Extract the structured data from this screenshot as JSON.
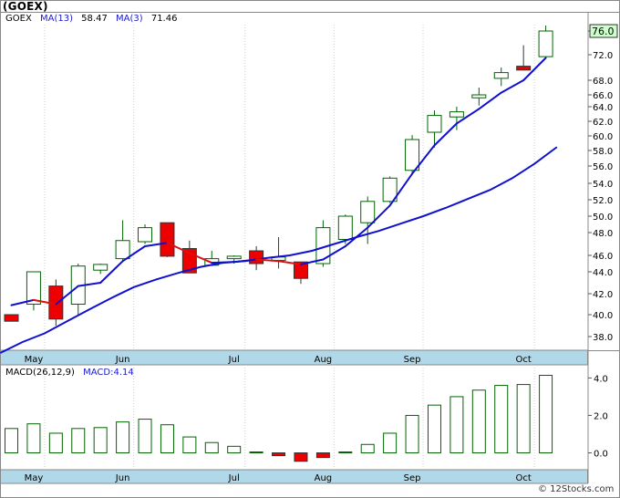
{
  "title": "(GOEX)",
  "legend": {
    "symbol": "GOEX",
    "ma13_label": "MA(13)",
    "ma13_value": "58.47",
    "ma3_label": "MA(3)",
    "ma3_value": "71.46"
  },
  "macd_legend": {
    "label": "MACD(26,12,9)",
    "value_label": "MACD:4.14"
  },
  "copyright": "© 12Stocks.com",
  "last_price_label": "76.0",
  "colors": {
    "up_fill": "#ffffff",
    "up_stroke": "#006400",
    "down_fill": "#ee0000",
    "ma_line": "#1010d0",
    "ma_down": "#dd1010",
    "axis_band": "#b0d8e8",
    "price_badge": "#ccffcc"
  },
  "chart_data": [
    {
      "type": "candlestick",
      "period": "weekly",
      "ylim": [
        36.5,
        77.5
      ],
      "y_ticks": [
        38.0,
        40.0,
        42.0,
        44.0,
        46.0,
        48.0,
        50.0,
        52.0,
        54.0,
        56.0,
        58.0,
        60.0,
        62.0,
        64.0,
        66.0,
        68.0,
        72.0,
        76.0
      ],
      "x_month_labels": [
        {
          "label": "May",
          "index": 1
        },
        {
          "label": "Jun",
          "index": 5
        },
        {
          "label": "Jul",
          "index": 10
        },
        {
          "label": "Aug",
          "index": 14
        },
        {
          "label": "Sep",
          "index": 18
        },
        {
          "label": "Oct",
          "index": 23
        }
      ],
      "candles": [
        {
          "o": 40.0,
          "h": 40.0,
          "l": 39.4,
          "c": 39.4
        },
        {
          "o": 41.0,
          "h": 44.0,
          "l": 40.4,
          "c": 44.0
        },
        {
          "o": 42.7,
          "h": 43.3,
          "l": 39.0,
          "c": 39.6
        },
        {
          "o": 41.0,
          "h": 45.0,
          "l": 40.0,
          "c": 44.7
        },
        {
          "o": 44.2,
          "h": 45.0,
          "l": 43.8,
          "c": 44.9
        },
        {
          "o": 45.6,
          "h": 49.5,
          "l": 45.4,
          "c": 47.3
        },
        {
          "o": 47.2,
          "h": 49.0,
          "l": 47.0,
          "c": 48.6
        },
        {
          "o": 49.2,
          "h": 49.2,
          "l": 45.8,
          "c": 45.9
        },
        {
          "o": 46.6,
          "h": 47.3,
          "l": 43.9,
          "c": 43.9
        },
        {
          "o": 44.8,
          "h": 46.4,
          "l": 44.7,
          "c": 45.6
        },
        {
          "o": 45.6,
          "h": 46.0,
          "l": 45.0,
          "c": 45.9
        },
        {
          "o": 46.4,
          "h": 46.8,
          "l": 44.2,
          "c": 45.0
        },
        {
          "o": 45.4,
          "h": 47.6,
          "l": 44.4,
          "c": 45.8
        },
        {
          "o": 45.2,
          "h": 45.2,
          "l": 42.9,
          "c": 43.4
        },
        {
          "o": 45.0,
          "h": 49.5,
          "l": 44.6,
          "c": 48.6
        },
        {
          "o": 47.4,
          "h": 50.2,
          "l": 47.0,
          "c": 50.0
        },
        {
          "o": 49.2,
          "h": 52.4,
          "l": 47.0,
          "c": 51.8
        },
        {
          "o": 51.8,
          "h": 54.8,
          "l": 51.6,
          "c": 54.6
        },
        {
          "o": 55.5,
          "h": 60.1,
          "l": 55.0,
          "c": 59.5
        },
        {
          "o": 60.5,
          "h": 63.5,
          "l": 58.4,
          "c": 62.8
        },
        {
          "o": 62.6,
          "h": 64.0,
          "l": 60.8,
          "c": 63.3
        },
        {
          "o": 65.5,
          "h": 67.0,
          "l": 64.2,
          "c": 66.0
        },
        {
          "o": 68.3,
          "h": 70.0,
          "l": 67.2,
          "c": 69.2
        },
        {
          "o": 70.2,
          "h": 73.6,
          "l": 69.6,
          "c": 69.6
        },
        {
          "o": 71.7,
          "h": 77.0,
          "l": 71.4,
          "c": 76.0
        }
      ],
      "ma3": [
        40.9,
        41.4,
        41.0,
        42.7,
        43.0,
        45.3,
        46.8,
        47.1,
        46.2,
        45.1,
        45.2,
        45.5,
        45.3,
        44.9,
        45.5,
        46.8,
        48.6,
        51.3,
        55.1,
        58.7,
        61.7,
        63.7,
        66.3,
        68.0,
        71.5
      ],
      "ma13": [
        36.8,
        37.6,
        38.3,
        39.4,
        40.5,
        41.6,
        42.6,
        43.3,
        43.9,
        44.6,
        45.1,
        45.3,
        45.7,
        46.0,
        46.4,
        47.0,
        47.6,
        48.2,
        49.1,
        50.0,
        51.0,
        52.1,
        53.2,
        54.6,
        56.3,
        58.47
      ],
      "ma13_start_index": -0.5
    },
    {
      "type": "bar",
      "title": "MACD(26,12,9)",
      "ylim": [
        -0.9,
        4.7
      ],
      "y_ticks": [
        0.0,
        2.0,
        4.0
      ],
      "x_month_labels": [
        {
          "label": "May",
          "index": 1
        },
        {
          "label": "Jun",
          "index": 5
        },
        {
          "label": "Jul",
          "index": 10
        },
        {
          "label": "Aug",
          "index": 14
        },
        {
          "label": "Sep",
          "index": 18
        },
        {
          "label": "Oct",
          "index": 23
        }
      ],
      "values": [
        1.3,
        1.55,
        1.05,
        1.3,
        1.35,
        1.65,
        1.8,
        1.5,
        0.85,
        0.55,
        0.35,
        0.05,
        -0.15,
        -0.45,
        -0.25,
        0.05,
        0.45,
        1.05,
        2.0,
        2.55,
        3.0,
        3.35,
        3.6,
        3.65,
        4.14
      ]
    }
  ]
}
